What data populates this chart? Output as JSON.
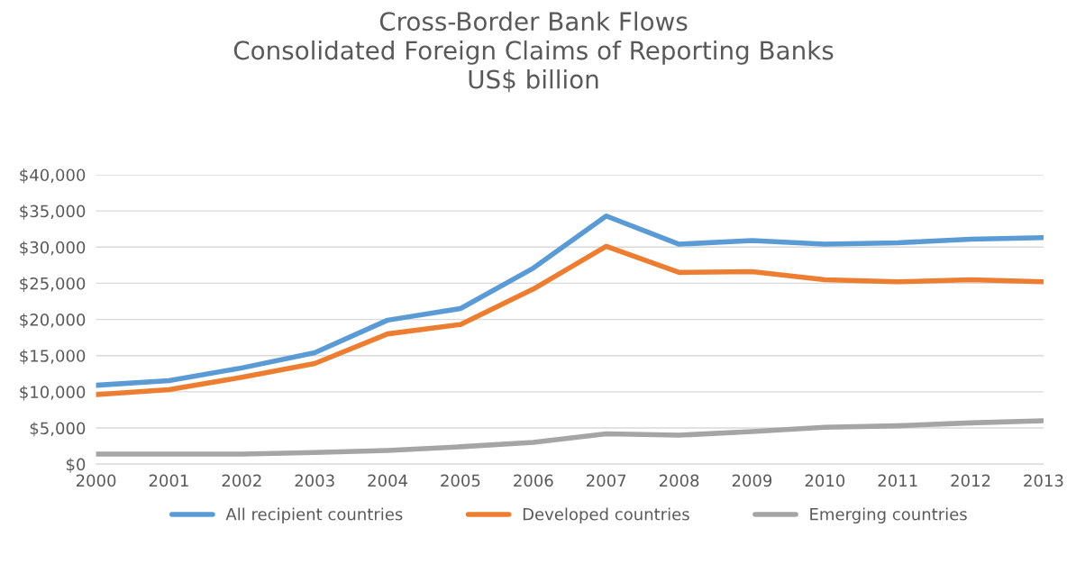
{
  "chart_data": {
    "type": "line",
    "title": "Cross-Border Bank Flows\nConsolidated Foreign Claims of Reporting Banks\nUS$ billion",
    "categories": [
      "2000",
      "2001",
      "2002",
      "2003",
      "2004",
      "2005",
      "2006",
      "2007",
      "2008",
      "2009",
      "2010",
      "2011",
      "2012",
      "2013"
    ],
    "series": [
      {
        "name": "All recipient countries",
        "color": "#5b9bd5",
        "values": [
          10900,
          11550,
          13300,
          15400,
          19900,
          21500,
          27100,
          34300,
          30400,
          30900,
          30400,
          30600,
          31100,
          31300
        ]
      },
      {
        "name": "Developed countries",
        "color": "#ed7d31",
        "values": [
          9600,
          10300,
          12000,
          13900,
          18000,
          19300,
          24200,
          30100,
          26500,
          26600,
          25500,
          25200,
          25500,
          25200
        ]
      },
      {
        "name": "Emerging countries",
        "color": "#a5a5a5",
        "values": [
          1400,
          1400,
          1400,
          1600,
          1900,
          2400,
          3000,
          4200,
          4000,
          4500,
          5100,
          5300,
          5700,
          6000
        ]
      }
    ],
    "ylim": [
      0,
      40000
    ],
    "yticks": [
      {
        "value": 0,
        "label": "$0"
      },
      {
        "value": 5000,
        "label": "$5,000"
      },
      {
        "value": 10000,
        "label": "$10,000"
      },
      {
        "value": 15000,
        "label": "$15,000"
      },
      {
        "value": 20000,
        "label": "$20,000"
      },
      {
        "value": 25000,
        "label": "$25,000"
      },
      {
        "value": 30000,
        "label": "$30,000"
      },
      {
        "value": 35000,
        "label": "$35,000"
      },
      {
        "value": 40000,
        "label": "$40,000"
      }
    ],
    "grid": "y",
    "legend": "bottom",
    "marker": "none",
    "line_style": "solid"
  }
}
